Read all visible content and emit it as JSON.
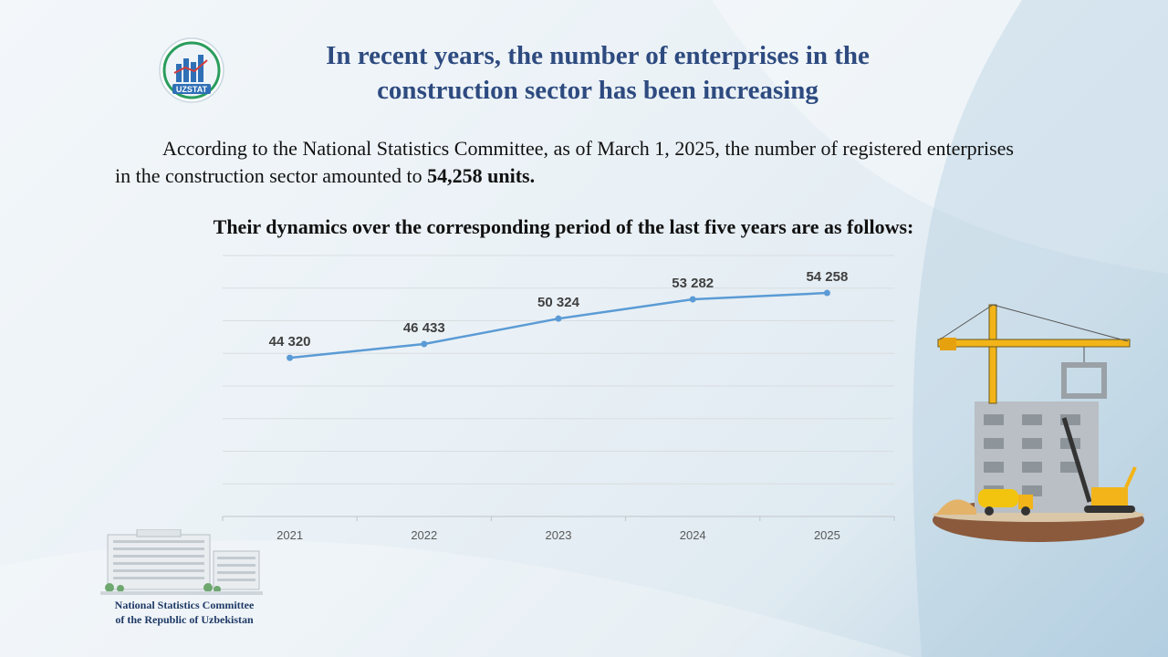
{
  "header": {
    "logo_text": "UZSTAT",
    "title": "In recent years, the number of enterprises in the construction sector has been increasing"
  },
  "intro": {
    "text": "According to the National Statistics Committee, as of March 1, 2025, the number of registered enterprises in the construction sector amounted to ",
    "highlight": "54,258 units."
  },
  "subtitle": "Their dynamics over the corresponding period of the last five years are as follows:",
  "chart_data": {
    "type": "line",
    "title": "",
    "xlabel": "",
    "ylabel": "",
    "categories": [
      "2021",
      "2022",
      "2023",
      "2024",
      "2025"
    ],
    "values": [
      44320,
      46433,
      50324,
      53282,
      54258
    ],
    "labels": [
      "44 320",
      "46 433",
      "50 324",
      "53 282",
      "54 258"
    ],
    "ylim": [
      20000,
      60000
    ],
    "grid": true,
    "color": "#5b9bd5"
  },
  "footer": {
    "committee_line1": "National Statistics Committee",
    "committee_line2": "of the Republic of Uzbekistan"
  }
}
